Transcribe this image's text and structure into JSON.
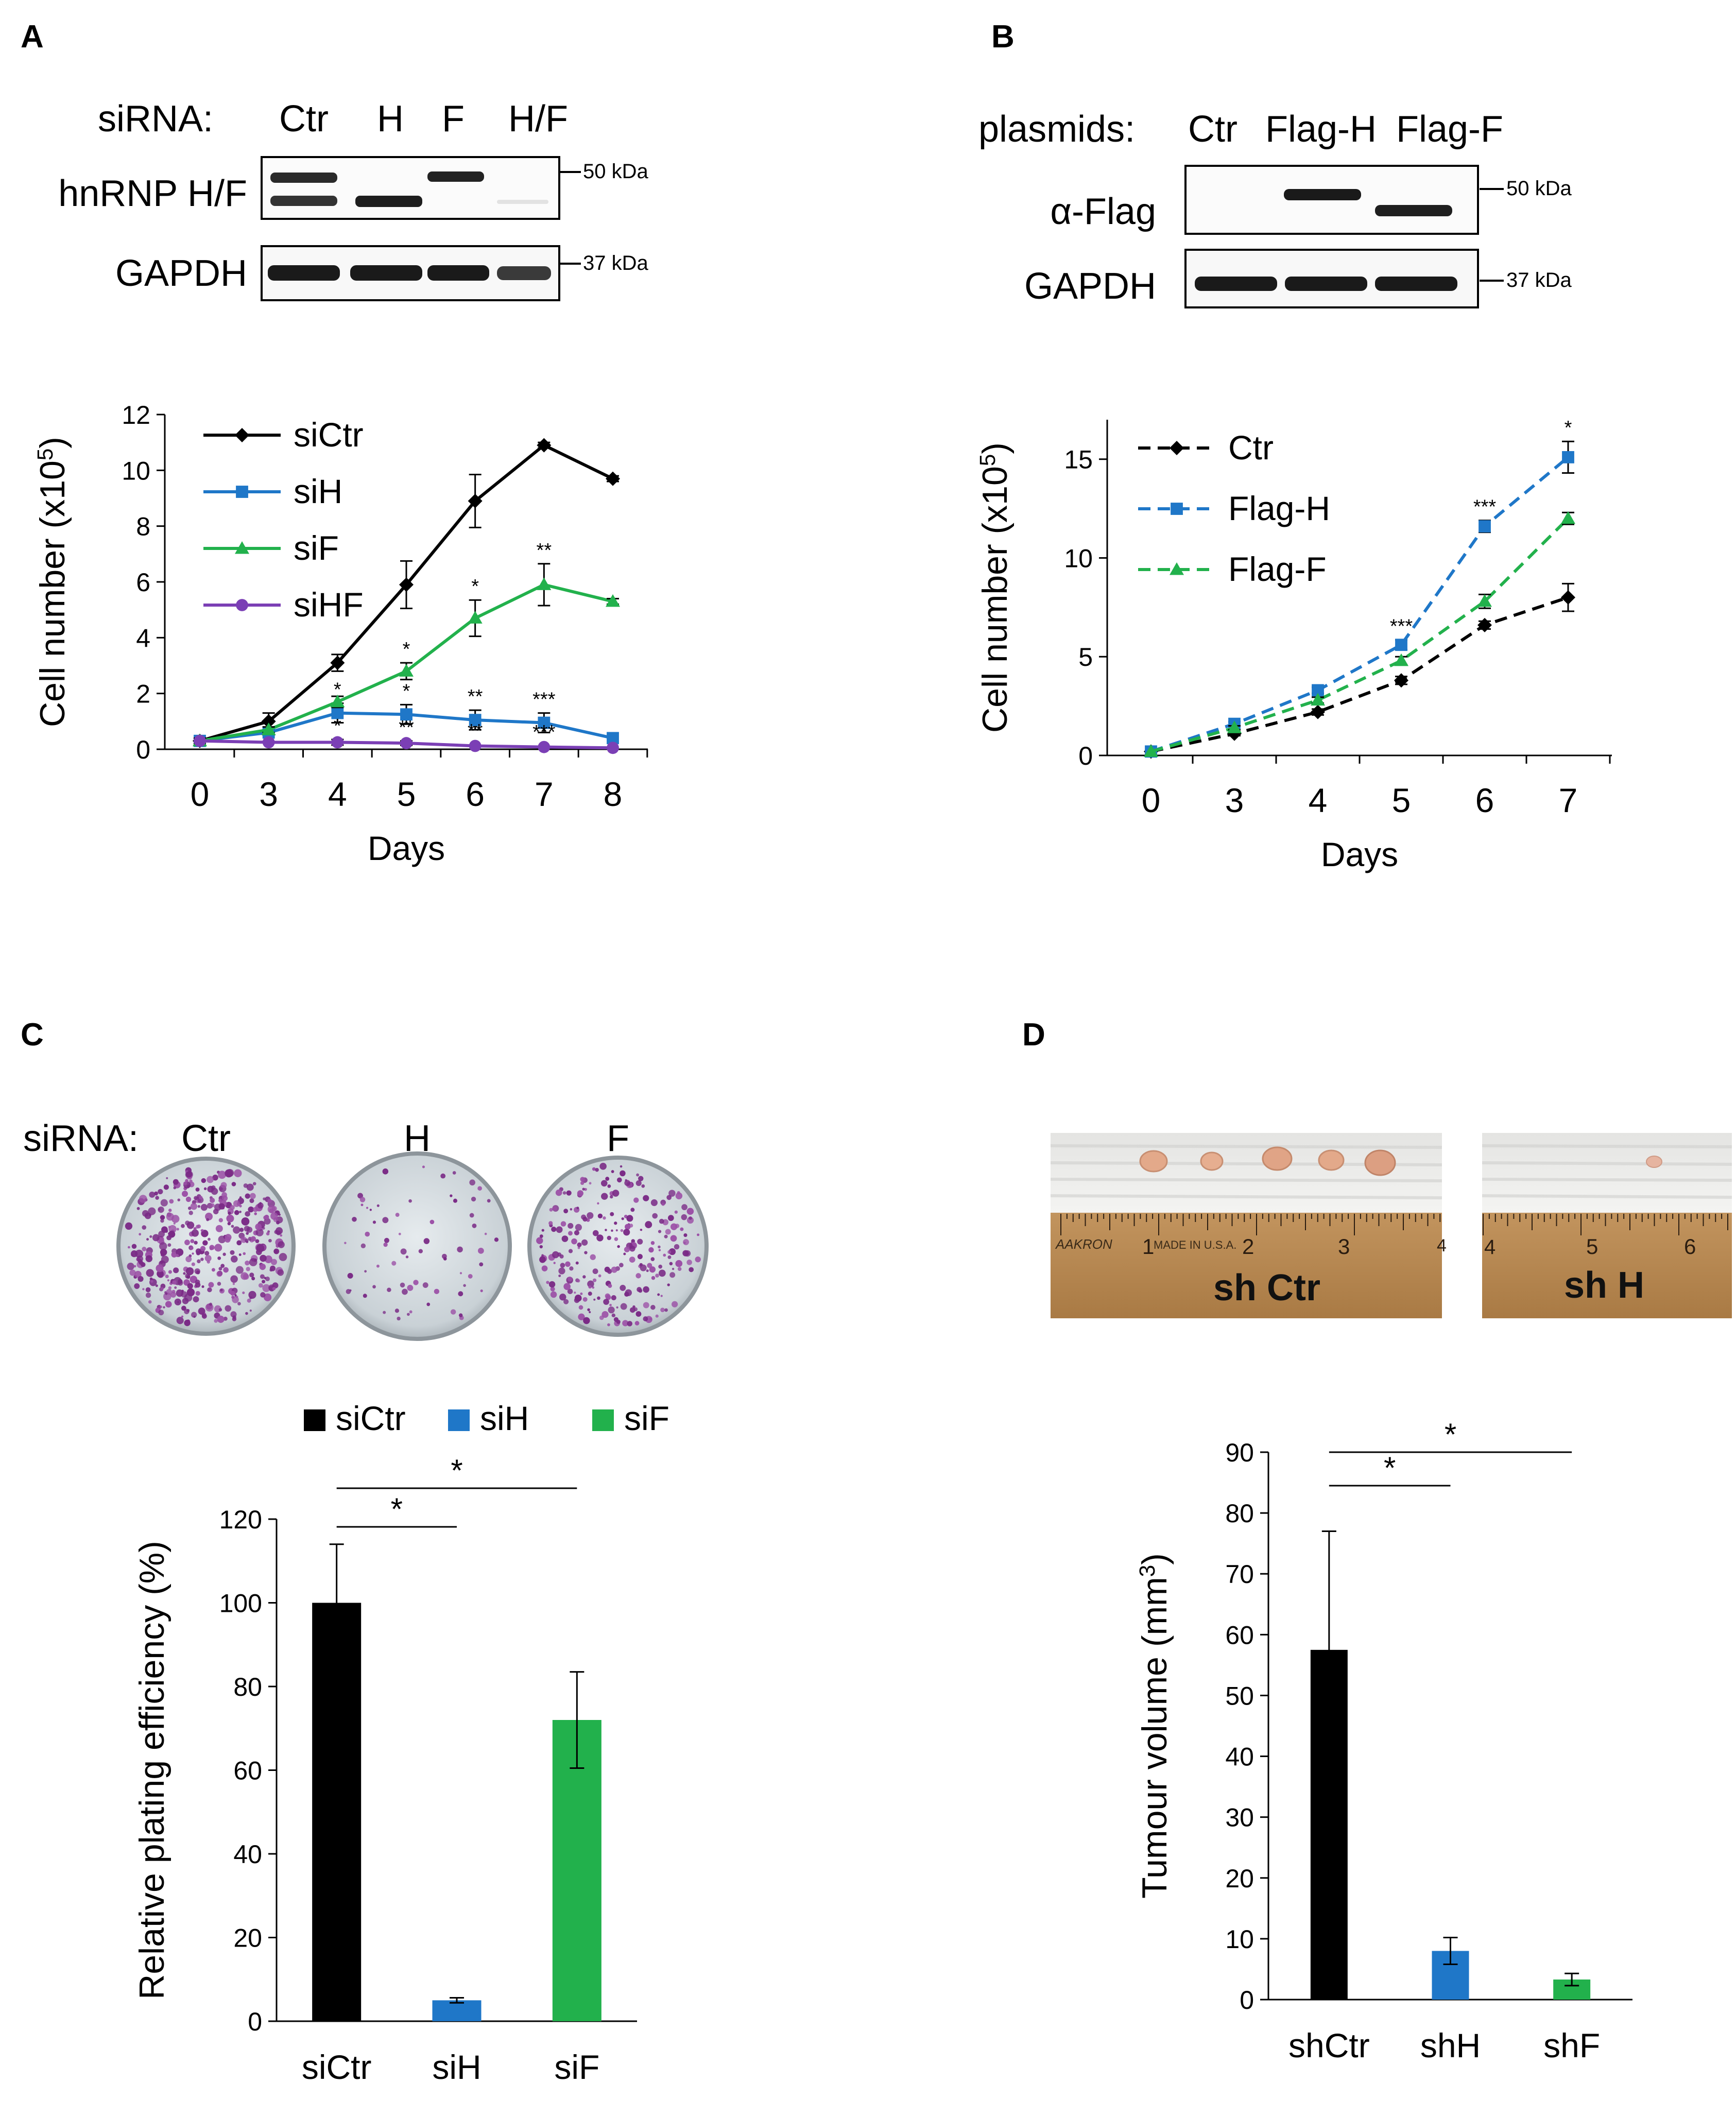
{
  "panels": {
    "A": {
      "letter": "A",
      "blot": {
        "prefix": "siRNA:",
        "lanes": [
          "Ctr",
          "H",
          "F",
          "H/F"
        ],
        "rows": [
          "hnRNP H/F",
          "GAPDH"
        ],
        "markers": [
          "50 kDa",
          "37 kDa"
        ]
      }
    },
    "B": {
      "letter": "B",
      "blot": {
        "prefix": "plasmids:",
        "lanes": [
          "Ctr",
          "Flag-H",
          "Flag-F"
        ],
        "rows": [
          "α-Flag",
          "GAPDH"
        ],
        "markers": [
          "50 kDa",
          "37 kDa"
        ]
      }
    },
    "C": {
      "letter": "C",
      "plates": {
        "prefix": "siRNA:",
        "labels": [
          "Ctr",
          "H",
          "F"
        ]
      }
    },
    "D": {
      "letter": "D",
      "photos": {
        "labels": [
          "sh Ctr",
          "sh H"
        ],
        "ruler_numbers": [
          "1",
          "2",
          "3",
          "4",
          "5",
          "6"
        ],
        "ruler_brand": "AAKRON",
        "ruler_made": "MADE IN U.S.A."
      }
    }
  },
  "colors": {
    "black": "#000000",
    "blue": "#1f77c8",
    "green": "#22b14c",
    "purple": "#7b3fb5"
  },
  "chart_data": [
    {
      "id": "A",
      "type": "line",
      "xlabel": "Days",
      "ylabel": "Cell number (x10",
      "ylabel_sup": "5",
      "ylabel_end": ")",
      "categories": [
        "0",
        "3",
        "4",
        "5",
        "6",
        "7",
        "8"
      ],
      "ylim": [
        0,
        12
      ],
      "yticks": [
        "0",
        "2",
        "4",
        "6",
        "8",
        "10",
        "12"
      ],
      "series": [
        {
          "name": "siCtr",
          "color": "#000000",
          "marker": "diamond",
          "dash": false,
          "values": [
            0.3,
            1.0,
            3.1,
            5.9,
            8.9,
            10.9,
            9.7
          ],
          "errors": [
            0.1,
            0.3,
            0.3,
            0.85,
            0.95,
            0.1,
            0.1
          ],
          "annotations": [
            "",
            "",
            "",
            "",
            "",
            "",
            ""
          ]
        },
        {
          "name": "siH",
          "color": "#1f77c8",
          "marker": "square",
          "dash": false,
          "values": [
            0.3,
            0.6,
            1.3,
            1.25,
            1.05,
            0.95,
            0.4
          ],
          "errors": [
            0.1,
            0.1,
            0.35,
            0.35,
            0.35,
            0.35,
            0.05
          ],
          "annotations": [
            "",
            "",
            "*",
            "*",
            "**",
            "***",
            ""
          ]
        },
        {
          "name": "siF",
          "color": "#22b14c",
          "marker": "triangle",
          "dash": false,
          "values": [
            0.3,
            0.7,
            1.7,
            2.8,
            4.7,
            5.9,
            5.3
          ],
          "errors": [
            0.1,
            0.1,
            0.2,
            0.3,
            0.65,
            0.75,
            0.1
          ],
          "annotations": [
            "",
            "",
            "",
            "*",
            "*",
            "**",
            ""
          ]
        },
        {
          "name": "siHF",
          "color": "#7b3fb5",
          "marker": "circle",
          "dash": false,
          "values": [
            0.3,
            0.25,
            0.25,
            0.22,
            0.12,
            0.08,
            0.05
          ],
          "errors": [
            0.05,
            0.05,
            0.1,
            0.08,
            0.05,
            0.05,
            0.02
          ],
          "annotations": [
            "",
            "",
            "*",
            "**",
            "**",
            "***",
            ""
          ]
        }
      ]
    },
    {
      "id": "B",
      "type": "line",
      "xlabel": "Days",
      "ylabel": "Cell number (x10",
      "ylabel_sup": "5",
      "ylabel_end": ")",
      "categories": [
        "0",
        "3",
        "4",
        "5",
        "6",
        "7"
      ],
      "ylim": [
        0,
        17
      ],
      "yticks": [
        "0",
        "5",
        "10",
        "15"
      ],
      "ytick_values": [
        0,
        5,
        10,
        15
      ],
      "series": [
        {
          "name": "Ctr",
          "color": "#000000",
          "marker": "diamond",
          "dash": true,
          "values": [
            0.2,
            1.1,
            2.2,
            3.8,
            6.6,
            8.0
          ],
          "errors": [
            0.05,
            0.1,
            0.15,
            0.2,
            0.2,
            0.7
          ],
          "annotations": [
            "",
            "",
            "",
            "",
            "",
            ""
          ]
        },
        {
          "name": "Flag-H",
          "color": "#1f77c8",
          "marker": "square",
          "dash": true,
          "values": [
            0.2,
            1.6,
            3.3,
            5.6,
            11.6,
            15.1
          ],
          "errors": [
            0.05,
            0.1,
            0.15,
            0.25,
            0.3,
            0.8
          ],
          "annotations": [
            "",
            "",
            "",
            "***",
            "***",
            "*"
          ]
        },
        {
          "name": "Flag-F",
          "color": "#22b14c",
          "marker": "triangle",
          "dash": true,
          "values": [
            0.2,
            1.4,
            2.8,
            4.8,
            7.8,
            12.0
          ],
          "errors": [
            0.05,
            0.1,
            0.15,
            0.2,
            0.35,
            0.3
          ],
          "annotations": [
            "",
            "",
            "",
            "",
            "",
            ""
          ]
        }
      ]
    },
    {
      "id": "C",
      "type": "bar",
      "ylabel": "Relative plating efficiency (%)",
      "categories": [
        "siCtr",
        "siH",
        "siF"
      ],
      "values": [
        100,
        5,
        72
      ],
      "errors": [
        14,
        0.6,
        11.5
      ],
      "colors": [
        "#000000",
        "#1f77c8",
        "#22b14c"
      ],
      "ylim": [
        0,
        120
      ],
      "yticks": [
        "0",
        "20",
        "40",
        "60",
        "80",
        "100",
        "120"
      ],
      "legend": [
        "siCtr",
        "siH",
        "siF"
      ],
      "significance": [
        {
          "from": 0,
          "to": 1,
          "label": "*"
        },
        {
          "from": 0,
          "to": 2,
          "label": "*"
        }
      ]
    },
    {
      "id": "D",
      "type": "bar",
      "ylabel": "Tumour volume (mm",
      "ylabel_sup": "3",
      "ylabel_end": ")",
      "categories": [
        "shCtr",
        "shH",
        "shF"
      ],
      "values": [
        57.5,
        8.0,
        3.3
      ],
      "errors": [
        19.5,
        2.2,
        1.0
      ],
      "colors": [
        "#000000",
        "#1f77c8",
        "#22b14c"
      ],
      "ylim": [
        0,
        90
      ],
      "yticks": [
        "0",
        "10",
        "20",
        "30",
        "40",
        "50",
        "60",
        "70",
        "80",
        "90"
      ],
      "significance": [
        {
          "from": 0,
          "to": 1,
          "label": "*"
        },
        {
          "from": 0,
          "to": 2,
          "label": "*"
        }
      ]
    }
  ]
}
